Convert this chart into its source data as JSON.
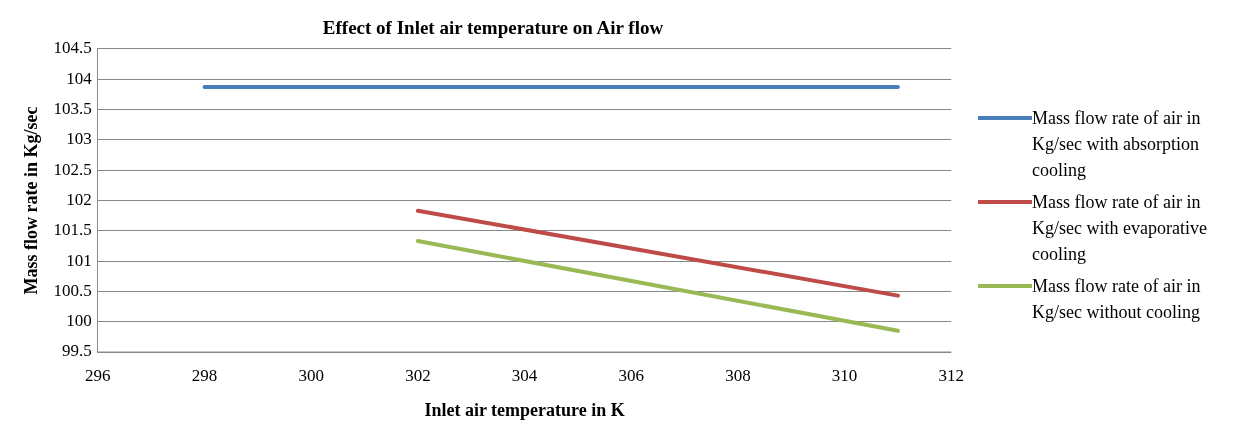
{
  "chart_data": {
    "type": "line",
    "title": "Effect of Inlet air temperature on Air flow",
    "xlabel": "Inlet air temperature in K",
    "ylabel": "Mass flow rate in Kg/sec",
    "xlim": [
      296,
      312
    ],
    "xticks": [
      296,
      298,
      300,
      302,
      304,
      306,
      308,
      310,
      312
    ],
    "ylim": [
      99.5,
      104.5
    ],
    "yticks": [
      99.5,
      100,
      100.5,
      101,
      101.5,
      102,
      102.5,
      103,
      103.5,
      104,
      104.5
    ],
    "grid": "y",
    "legend": "right",
    "marker": "none",
    "line_style": "solid",
    "series": [
      {
        "name": "Mass flow rate of air in Kg/sec with absorption cooling",
        "color": "#4a7ebb",
        "x": [
          298,
          311
        ],
        "values": [
          103.87,
          103.87
        ]
      },
      {
        "name": "Mass flow rate of air in Kg/sec with evaporative cooling",
        "color": "#be4b48",
        "x": [
          302,
          311
        ],
        "values": [
          101.83,
          100.43
        ]
      },
      {
        "name": "Mass flow rate of air in Kg/sec without cooling",
        "color": "#98b954",
        "x": [
          302,
          311
        ],
        "values": [
          101.33,
          99.85
        ]
      }
    ]
  }
}
